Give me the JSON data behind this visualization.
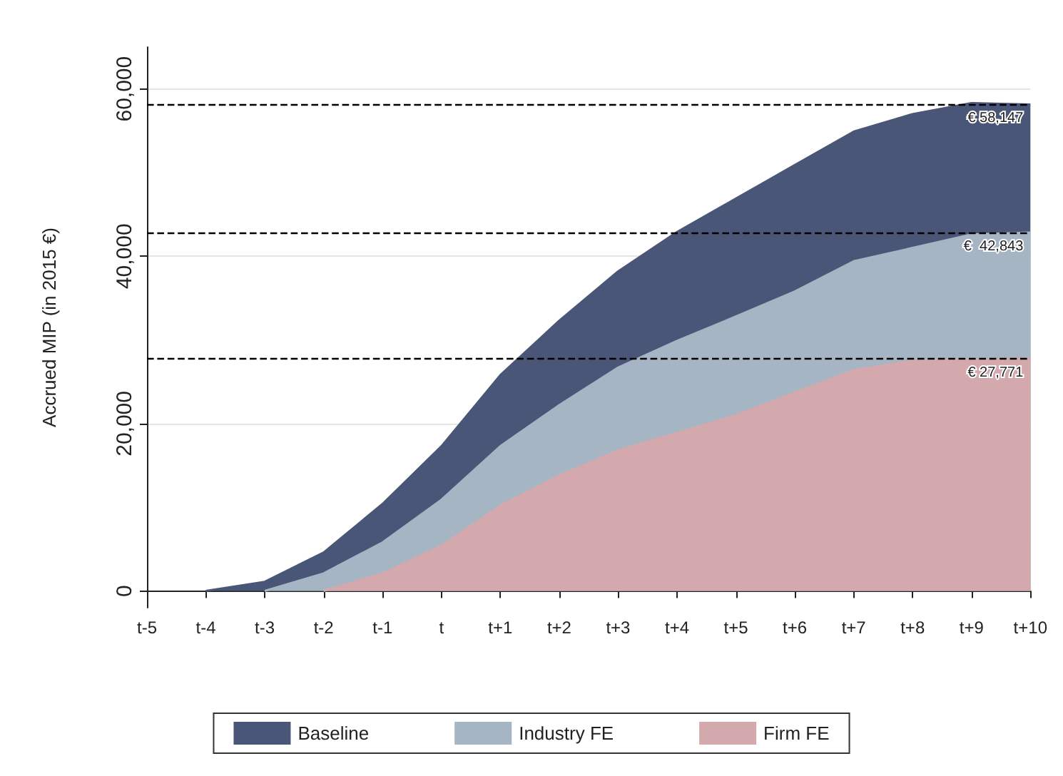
{
  "chart_data": {
    "type": "area",
    "ylabel": "Accrued MIP (in 2015 €)",
    "categories": [
      "t-5",
      "t-4",
      "t-3",
      "t-2",
      "t-1",
      "t",
      "t+1",
      "t+2",
      "t+3",
      "t+4",
      "t+5",
      "t+6",
      "t+7",
      "t+8",
      "t+9",
      "t+10"
    ],
    "series": [
      {
        "name": "Baseline",
        "color": "#4a5677",
        "values": [
          null,
          0,
          1100,
          4600,
          10400,
          17300,
          25800,
          32300,
          38200,
          42900,
          46900,
          50900,
          54900,
          57000,
          58300,
          58147
        ]
      },
      {
        "name": "Industry FE",
        "color": "#a5b5c4",
        "values": [
          null,
          null,
          0,
          2100,
          5800,
          10900,
          17300,
          22200,
          26700,
          29900,
          32800,
          35800,
          39400,
          41000,
          42600,
          42843
        ]
      },
      {
        "name": "Firm FE",
        "color": "#d3a9ad",
        "values": [
          null,
          null,
          null,
          0,
          2100,
          5400,
          10200,
          13800,
          16800,
          18900,
          21000,
          23700,
          26400,
          27500,
          27700,
          27771
        ]
      }
    ],
    "ylim": [
      -2000,
      65000
    ],
    "yticks": [
      {
        "value": 0,
        "label": "0"
      },
      {
        "value": 20000,
        "label": "20,000"
      },
      {
        "value": 40000,
        "label": "40,000"
      },
      {
        "value": 60000,
        "label": "60,000"
      }
    ],
    "ref_lines": [
      {
        "axis": "y",
        "value": 58147,
        "label": "€ 58,147",
        "color": "#000000",
        "line_style": "dashed"
      },
      {
        "axis": "y",
        "value": 42843,
        "label": "€  42,843",
        "color": "#000000",
        "line_style": "dashed"
      },
      {
        "axis": "y",
        "value": 27771,
        "label": "€ 27,771",
        "color": "#000000",
        "line_style": "dashed"
      }
    ],
    "grid": "y",
    "legend": "bottom",
    "marker": "none",
    "line_style": "solid"
  }
}
